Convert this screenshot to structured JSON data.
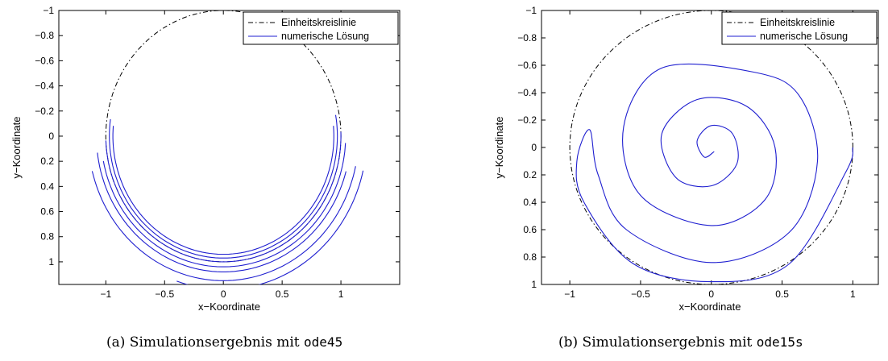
{
  "colors": {
    "reference": "#000000",
    "numeric": "#1f1fd0"
  },
  "chart_data": [
    {
      "type": "line",
      "title": "",
      "xlabel": "x−Koordinate",
      "ylabel": "y−Koordinate",
      "xlim": [
        -1.4,
        1.5
      ],
      "ylim": [
        -1.0,
        1.18
      ],
      "y_reversed": true,
      "x_ticks": [
        -1,
        -0.5,
        0,
        0.5,
        1
      ],
      "x_tick_labels": [
        "−1",
        "−0.5",
        "0",
        "0.5",
        "1"
      ],
      "y_ticks": [
        -1,
        -0.8,
        -0.6,
        -0.4,
        -0.2,
        0,
        0.2,
        0.4,
        0.6,
        0.8,
        1
      ],
      "y_tick_labels": [
        "−1",
        "−0.8",
        "−0.6",
        "−0.4",
        "−0.2",
        "0",
        "0.2",
        "0.4",
        "0.6",
        "0.8",
        "1"
      ],
      "grid": false,
      "legend_position": "top-right",
      "series": [
        {
          "name": "Einheitskreislinie",
          "style": "dash-dot",
          "kind": "unit-circle",
          "theta_range_deg": [
            0,
            360
          ]
        },
        {
          "name": "numerische Lösung",
          "style": "solid",
          "kind": "arcs",
          "arcs": [
            {
              "radius": 0.94,
              "theta_start_deg": -5,
              "theta_end_deg": 185
            },
            {
              "radius": 0.97,
              "theta_start_deg": -10,
              "theta_end_deg": 188
            },
            {
              "radius": 1.0,
              "theta_start_deg": -2,
              "theta_end_deg": 178
            },
            {
              "radius": 1.04,
              "theta_start_deg": 3,
              "theta_end_deg": 170
            },
            {
              "radius": 1.08,
              "theta_start_deg": 15,
              "theta_end_deg": 173
            },
            {
              "radius": 1.15,
              "theta_start_deg": 12,
              "theta_end_deg": 167
            },
            {
              "radius": 1.22,
              "theta_start_deg": 13,
              "theta_end_deg": 110
            }
          ]
        }
      ]
    },
    {
      "type": "line",
      "title": "",
      "xlabel": "x−Koordinate",
      "ylabel": "y−Koordinate",
      "xlim": [
        -1.2,
        1.18
      ],
      "ylim": [
        -1.0,
        1.0
      ],
      "y_reversed": true,
      "x_ticks": [
        -1,
        -0.5,
        0,
        0.5,
        1
      ],
      "x_tick_labels": [
        "−1",
        "−0.5",
        "0",
        "0.5",
        "1"
      ],
      "y_ticks": [
        -1,
        -0.8,
        -0.6,
        -0.4,
        -0.2,
        0,
        0.2,
        0.4,
        0.6,
        0.8,
        1
      ],
      "y_tick_labels": [
        "−1",
        "−0.8",
        "−0.6",
        "−0.4",
        "−0.2",
        "0",
        "0.2",
        "0.4",
        "0.6",
        "0.8",
        "1"
      ],
      "grid": false,
      "legend_position": "top-right",
      "series": [
        {
          "name": "Einheitskreislinie",
          "style": "dash-dot",
          "kind": "unit-circle",
          "theta_range_deg": [
            0,
            360
          ]
        },
        {
          "name": "numerische Lösung",
          "style": "solid",
          "kind": "spiral",
          "center": [
            0,
            0
          ],
          "r_start": 0.98,
          "r_end": 0.02,
          "theta_start_deg": 0,
          "theta_end_deg": 2100,
          "points": [
            [
              1.0,
              0.0
            ],
            [
              0.95,
              0.18
            ],
            [
              0.55,
              0.85
            ],
            [
              0.0,
              0.98
            ],
            [
              -0.55,
              0.85
            ],
            [
              -0.9,
              0.4
            ],
            [
              -0.95,
              0.1
            ],
            [
              -0.86,
              -0.13
            ],
            [
              -0.8,
              0.2
            ],
            [
              -0.6,
              0.6
            ],
            [
              0.0,
              0.84
            ],
            [
              0.55,
              0.62
            ],
            [
              0.75,
              0.1
            ],
            [
              0.62,
              -0.38
            ],
            [
              0.3,
              -0.55
            ],
            [
              -0.35,
              -0.58
            ],
            [
              -0.62,
              -0.15
            ],
            [
              -0.5,
              0.35
            ],
            [
              0.0,
              0.57
            ],
            [
              0.38,
              0.38
            ],
            [
              0.45,
              0.0
            ],
            [
              0.25,
              -0.3
            ],
            [
              -0.1,
              -0.35
            ],
            [
              -0.35,
              -0.1
            ],
            [
              -0.25,
              0.22
            ],
            [
              0.0,
              0.28
            ],
            [
              0.18,
              0.12
            ],
            [
              0.15,
              -0.1
            ],
            [
              0.0,
              -0.16
            ],
            [
              -0.1,
              -0.05
            ],
            [
              -0.05,
              0.07
            ],
            [
              0.02,
              0.03
            ]
          ]
        }
      ]
    }
  ],
  "captions": [
    {
      "prefix": "(a) Simulationsergebnis mit ",
      "code": "ode45"
    },
    {
      "prefix": "(b) Simulationsergebnis mit ",
      "code": "ode15s"
    }
  ]
}
